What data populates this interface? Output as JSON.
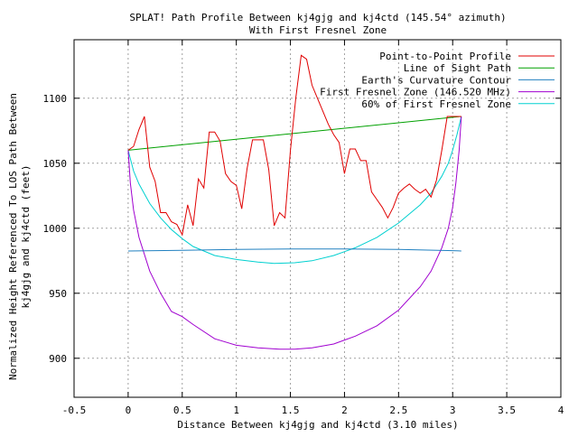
{
  "chart_data": {
    "type": "line",
    "title": "SPLAT! Path Profile Between kj4gjg and kj4ctd (145.54° azimuth)",
    "subtitle": "With First Fresnel Zone",
    "xlabel": "Distance Between kj4gjg and kj4ctd (3.10 miles)",
    "ylabel_line1": "Normalized Height Referenced To LOS Path Between",
    "ylabel_line2": "kj4gjg and kj4ctd (feet)",
    "xlim": [
      -0.5,
      4
    ],
    "ylim": [
      870,
      1145
    ],
    "xticks": [
      -0.5,
      0,
      0.5,
      1,
      1.5,
      2,
      2.5,
      3,
      3.5,
      4
    ],
    "xtick_labels": [
      "-0.5",
      "0",
      "0.5",
      "1",
      "1.5",
      "2",
      "2.5",
      "3",
      "3.5",
      "4"
    ],
    "yticks": [
      900,
      950,
      1000,
      1050,
      1100
    ],
    "ytick_labels": [
      "900",
      "950",
      "1000",
      "1050",
      "1100"
    ],
    "grid": true,
    "legend_position": "top-right",
    "series": [
      {
        "name": "Point-to-Point Profile",
        "color": "#e00000",
        "x": [
          0,
          0.05,
          0.1,
          0.15,
          0.2,
          0.25,
          0.3,
          0.35,
          0.4,
          0.45,
          0.5,
          0.55,
          0.6,
          0.65,
          0.7,
          0.75,
          0.8,
          0.85,
          0.9,
          0.95,
          1.0,
          1.05,
          1.1,
          1.15,
          1.2,
          1.25,
          1.3,
          1.35,
          1.4,
          1.45,
          1.5,
          1.55,
          1.6,
          1.65,
          1.7,
          1.75,
          1.8,
          1.85,
          1.9,
          1.95,
          2.0,
          2.05,
          2.1,
          2.15,
          2.2,
          2.25,
          2.3,
          2.35,
          2.4,
          2.45,
          2.5,
          2.55,
          2.6,
          2.65,
          2.7,
          2.75,
          2.8,
          2.85,
          2.9,
          2.95,
          3.0,
          3.05,
          3.08
        ],
        "y": [
          1060,
          1063,
          1076,
          1086,
          1047,
          1036,
          1012,
          1012,
          1005,
          1003,
          995,
          1018,
          1002,
          1038,
          1031,
          1074,
          1074,
          1067,
          1042,
          1036,
          1033,
          1015,
          1046,
          1068,
          1068,
          1068,
          1045,
          1002,
          1012,
          1008,
          1060,
          1100,
          1133,
          1130,
          1110,
          1100,
          1090,
          1080,
          1072,
          1066,
          1042,
          1061,
          1061,
          1052,
          1052,
          1028,
          1022,
          1016,
          1008,
          1016,
          1027,
          1031,
          1034,
          1030,
          1027,
          1030,
          1024,
          1037,
          1060,
          1086,
          1086,
          1086,
          1086
        ]
      },
      {
        "name": "Line of Sight Path",
        "color": "#00a000",
        "x": [
          0,
          3.08
        ],
        "y": [
          1060,
          1086
        ]
      },
      {
        "name": "Earth's Curvature Contour",
        "color": "#2080c0",
        "x": [
          0,
          0.5,
          1.0,
          1.5,
          2.0,
          2.5,
          3.0,
          3.08
        ],
        "y": [
          982.5,
          983,
          983.7,
          984,
          984,
          983.7,
          982.8,
          982.5
        ]
      },
      {
        "name": "First Fresnel Zone (146.520 MHz)",
        "color": "#a000d0",
        "x": [
          0,
          0.02,
          0.05,
          0.1,
          0.2,
          0.3,
          0.4,
          0.5,
          0.6,
          0.8,
          1.0,
          1.2,
          1.4,
          1.54,
          1.7,
          1.9,
          2.1,
          2.3,
          2.5,
          2.7,
          2.8,
          2.9,
          2.96,
          3.0,
          3.03,
          3.06,
          3.08
        ],
        "y": [
          1060,
          1035,
          1014,
          993,
          967,
          950,
          936,
          932,
          926,
          915,
          910,
          908,
          907,
          907,
          908,
          911,
          917,
          925,
          937,
          955,
          967,
          985,
          1000,
          1016,
          1035,
          1060,
          1086
        ]
      },
      {
        "name": "60% of First Fresnel Zone",
        "color": "#00d0d0",
        "x": [
          0,
          0.05,
          0.1,
          0.2,
          0.3,
          0.4,
          0.5,
          0.6,
          0.8,
          1.0,
          1.2,
          1.35,
          1.54,
          1.7,
          1.9,
          2.1,
          2.3,
          2.5,
          2.7,
          2.8,
          2.9,
          2.96,
          3.0,
          3.04,
          3.08
        ],
        "y": [
          1060,
          1044,
          1034,
          1019,
          1008,
          999,
          992,
          986,
          979,
          976,
          974,
          973,
          973.5,
          975,
          979,
          985,
          993,
          1004,
          1018,
          1027,
          1040,
          1050,
          1060,
          1072,
          1086
        ]
      }
    ]
  }
}
